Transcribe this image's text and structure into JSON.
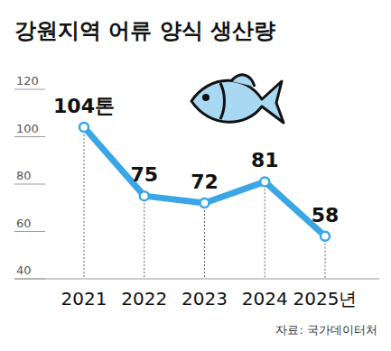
{
  "chart_data": {
    "type": "line",
    "title": "강원지역 어류 양식 생산량",
    "categories": [
      "2021",
      "2022",
      "2023",
      "2024",
      "2025년"
    ],
    "values": [
      104,
      75,
      72,
      81,
      58
    ],
    "value_labels": [
      "104톤",
      "75",
      "72",
      "81",
      "58"
    ],
    "color": "#3aa6e6",
    "marker": "circle",
    "line_style": "solid",
    "ylim": [
      40,
      120
    ],
    "yticks": [
      40,
      60,
      80,
      100,
      120
    ],
    "grid": false,
    "data_labels": true,
    "source": "자료: 국가데이터처"
  }
}
